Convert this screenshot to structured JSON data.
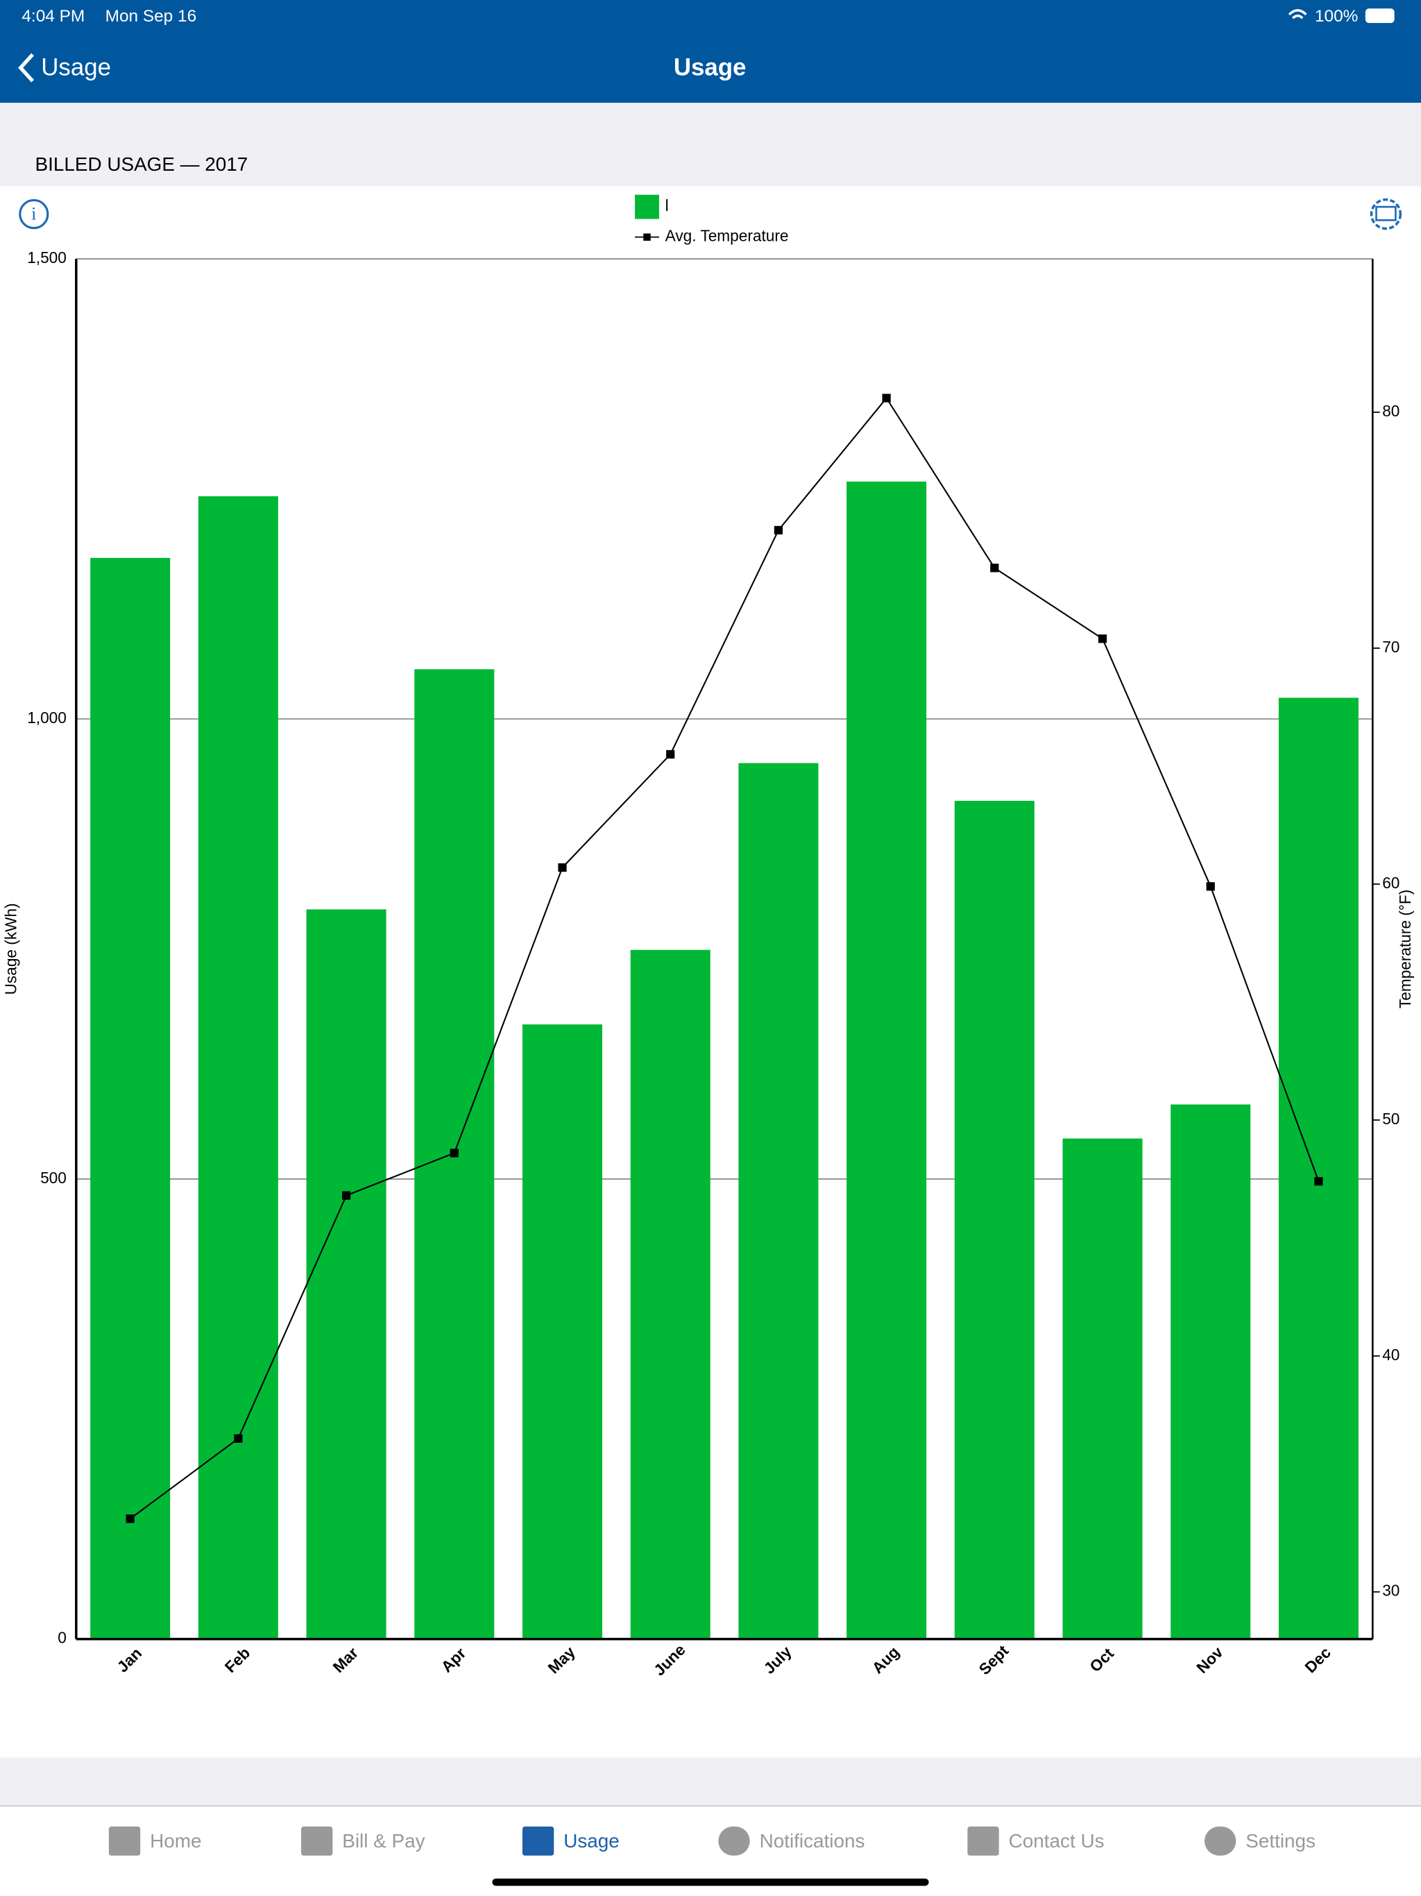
{
  "status_bar": {
    "time": "4:04 PM",
    "date": "Mon Sep 16",
    "battery": "100%"
  },
  "nav_bar": {
    "back": "Usage",
    "title": "Usage"
  },
  "section_header": "BILLED USAGE — 2017",
  "chart_data": {
    "type": "bar",
    "categories": [
      "Jan",
      "Feb",
      "Mar",
      "Apr",
      "May",
      "June",
      "July",
      "Aug",
      "Sept",
      "Oct",
      "Nov",
      "Dec"
    ],
    "series": [
      {
        "name": "l",
        "type": "bar",
        "color": "#00b836",
        "values": [
          1175,
          1242,
          793,
          1054,
          668,
          749,
          952,
          1258,
          911,
          544,
          581,
          1023
        ]
      },
      {
        "name": "Avg. Temperature",
        "type": "line",
        "color": "#000000",
        "axis": "y2",
        "values": [
          33.1,
          36.5,
          46.8,
          48.6,
          60.7,
          65.5,
          75.0,
          80.6,
          73.4,
          70.4,
          59.9,
          47.4
        ]
      }
    ],
    "y_label": "Usage (kWh)",
    "y2_label": "Temperature (°F)",
    "ylim": [
      0,
      1500
    ],
    "yticks": [
      0,
      500,
      {
        "value": 1000,
        "label": "1,000"
      },
      {
        "value": 1500,
        "label": "1,500"
      }
    ],
    "y2lim": [
      28,
      86.5
    ],
    "y2ticks": [
      30,
      40,
      50,
      60,
      70,
      80
    ],
    "grid": true
  },
  "tabs": [
    "Home",
    "Bill & Pay",
    "Usage",
    "Notifications",
    "Contact Us",
    "Settings"
  ]
}
